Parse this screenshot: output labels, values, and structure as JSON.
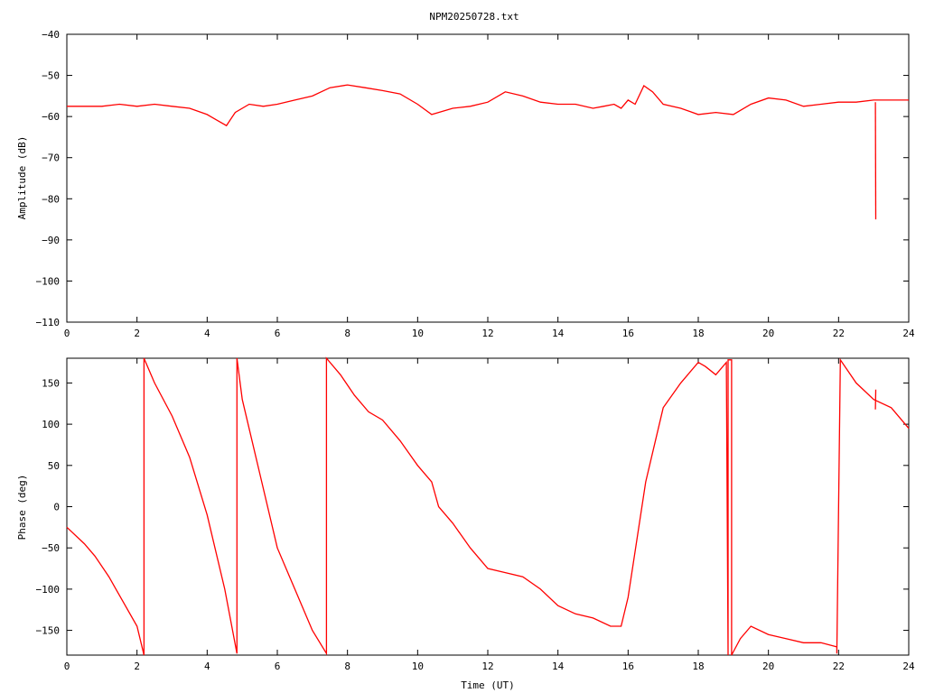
{
  "title": "NPM20250728.txt",
  "chart_data": [
    {
      "type": "line",
      "ylabel": "Amplitude (dB)",
      "xlabel": "",
      "xlim": [
        0,
        24
      ],
      "ylim": [
        -110,
        -40
      ],
      "x_ticks": [
        "0",
        "2",
        "4",
        "6",
        "8",
        "10",
        "12",
        "14",
        "16",
        "18",
        "20",
        "22",
        "24"
      ],
      "y_ticks": [
        "-40",
        "-50",
        "-60",
        "-70",
        "-80",
        "-90",
        "-100",
        "-110"
      ],
      "series": [
        {
          "color": "#ff0000",
          "x": [
            0,
            0.5,
            1,
            1.5,
            2,
            2.5,
            3,
            3.5,
            4,
            4.3,
            4.55,
            4.8,
            5.2,
            5.6,
            6,
            6.5,
            7,
            7.5,
            8,
            8.5,
            9,
            9.5,
            10,
            10.4,
            10.6,
            11,
            11.5,
            12,
            12.5,
            13,
            13.5,
            14,
            14.5,
            15,
            15.3,
            15.6,
            15.8,
            16,
            16.2,
            16.45,
            16.7,
            17,
            17.5,
            18,
            18.5,
            19,
            19.5,
            20,
            20.5,
            21,
            21.5,
            22,
            22.5,
            23,
            23.5,
            24
          ],
          "y": [
            -57.5,
            -57.5,
            -57.5,
            -57,
            -57.5,
            -57,
            -57.5,
            -58,
            -59.5,
            -61,
            -62.2,
            -59,
            -57,
            -57.5,
            -57,
            -56,
            -55,
            -53,
            -52.3,
            -53,
            -53.7,
            -54.5,
            -57,
            -59.5,
            -59,
            -58,
            -57.5,
            -56.5,
            -54,
            -55,
            -56.5,
            -57,
            -57,
            -58,
            -57.5,
            -57,
            -58,
            -56,
            -57,
            -52.5,
            -54,
            -57,
            -58,
            -59.5,
            -59,
            -59.5,
            -57,
            -55.5,
            -56,
            -57.5,
            -57,
            -56.5,
            -56.5,
            -56,
            -56,
            -56
          ]
        },
        {
          "color": "#ff0000",
          "x": [
            23.05,
            23.06
          ],
          "y": [
            -56.5,
            -85
          ]
        }
      ]
    },
    {
      "type": "line",
      "ylabel": "Phase (deg)",
      "xlabel": "Time (UT)",
      "xlim": [
        0,
        24
      ],
      "ylim": [
        -180,
        180
      ],
      "x_ticks": [
        "0",
        "2",
        "4",
        "6",
        "8",
        "10",
        "12",
        "14",
        "16",
        "18",
        "20",
        "22",
        "24"
      ],
      "y_ticks": [
        "150",
        "100",
        "50",
        "0",
        "-50",
        "-100",
        "-150"
      ],
      "y_tick_values": [
        150,
        100,
        50,
        0,
        -50,
        -100,
        -150
      ],
      "series": [
        {
          "color": "#ff0000",
          "x": [
            0,
            0.5,
            0.8,
            1.2,
            1.6,
            2.0,
            2.2,
            2.2,
            2.5,
            3.0,
            3.5,
            4.0,
            4.5,
            4.85,
            4.85,
            5.0,
            5.5,
            6.0,
            6.5,
            7.0,
            7.4,
            7.4,
            7.8,
            8.2,
            8.6,
            9.0,
            9.5,
            10.0,
            10.4,
            10.6,
            11.0,
            11.5,
            12.0,
            12.5,
            13.0,
            13.5,
            14.0,
            14.5,
            15.0,
            15.5,
            15.8,
            16.0,
            16.5,
            17.0,
            17.5,
            18.0,
            18.2,
            18.5,
            18.8,
            18.85,
            18.85,
            18.95,
            18.95,
            19.2,
            19.5,
            20.0,
            20.5,
            21.0,
            21.5,
            21.95,
            21.95,
            22.05,
            22.05,
            22.5,
            23.0,
            23.5,
            24.0
          ],
          "y": [
            -25,
            -45,
            -60,
            -85,
            -115,
            -145,
            -180,
            180,
            150,
            110,
            60,
            -10,
            -100,
            -178,
            180,
            130,
            40,
            -50,
            -100,
            -150,
            -178,
            180,
            160,
            135,
            115,
            105,
            80,
            50,
            30,
            0,
            -20,
            -50,
            -75,
            -80,
            -85,
            -100,
            -120,
            -130,
            -135,
            -145,
            -145,
            -110,
            30,
            120,
            150,
            175,
            170,
            160,
            175,
            -180,
            178,
            178,
            -180,
            -160,
            -145,
            -155,
            -160,
            -165,
            -165,
            -170,
            -178,
            178,
            178,
            150,
            130,
            120,
            95
          ]
        },
        {
          "color": "#ff0000",
          "x": [
            23.05,
            23.06
          ],
          "y": [
            118,
            142
          ]
        }
      ]
    }
  ]
}
